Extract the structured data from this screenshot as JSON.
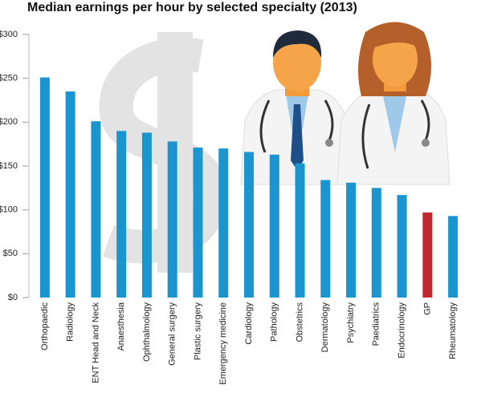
{
  "chart_data": {
    "type": "bar",
    "title": "Median earnings per hour by selected specialty (2013)",
    "categories": [
      "Orthopaedic",
      "Radiology",
      "ENT Head and Neck",
      "Anaesthesia",
      "Ophthalmology",
      "General surgery",
      "Plastic surgery",
      "Emergency medicine",
      "Cardiology",
      "Pathology",
      "Obstetrics",
      "Dermatology",
      "Psychiatry",
      "Paediatrics",
      "Endocrinology",
      "GP",
      "Rheumatology"
    ],
    "values": [
      251,
      235,
      201,
      190,
      188,
      178,
      171,
      170,
      166,
      163,
      153,
      134,
      131,
      125,
      117,
      97,
      93
    ],
    "colors": [
      "#1b95cf",
      "#1b95cf",
      "#1b95cf",
      "#1b95cf",
      "#1b95cf",
      "#1b95cf",
      "#1b95cf",
      "#1b95cf",
      "#1b95cf",
      "#1b95cf",
      "#1b95cf",
      "#1b95cf",
      "#1b95cf",
      "#1b95cf",
      "#1b95cf",
      "#c1272d",
      "#1b95cf"
    ],
    "ylim": [
      0,
      300
    ],
    "yticks": [
      {
        "value": 0,
        "label": "$0"
      },
      {
        "value": 50,
        "label": "$50"
      },
      {
        "value": 100,
        "label": "$100"
      },
      {
        "value": 150,
        "label": "$150"
      },
      {
        "value": 200,
        "label": "$200"
      },
      {
        "value": 250,
        "label": "$250"
      },
      {
        "value": 300,
        "label": "$300"
      }
    ],
    "grid": false
  }
}
